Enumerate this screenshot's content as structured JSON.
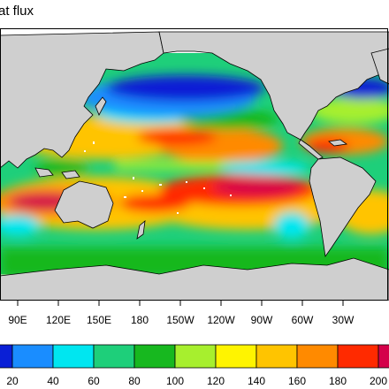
{
  "title": "at flux",
  "longitude_ticks": [
    "90E",
    "120E",
    "150E",
    "180",
    "150W",
    "120W",
    "90W",
    "60W",
    "30W"
  ],
  "colorbar": {
    "labels": [
      "20",
      "40",
      "60",
      "80",
      "100",
      "120",
      "140",
      "160",
      "180",
      "200"
    ],
    "colors": [
      "#0a1fd6",
      "#1a8dff",
      "#00e6f0",
      "#1ecf7a",
      "#17b81f",
      "#a7ef2e",
      "#fff400",
      "#ffc400",
      "#ff8a00",
      "#ff2a00",
      "#d4004a"
    ]
  },
  "colors": {
    "land": "#cfcfcf",
    "ocean_background": "#1ecf7a"
  }
}
